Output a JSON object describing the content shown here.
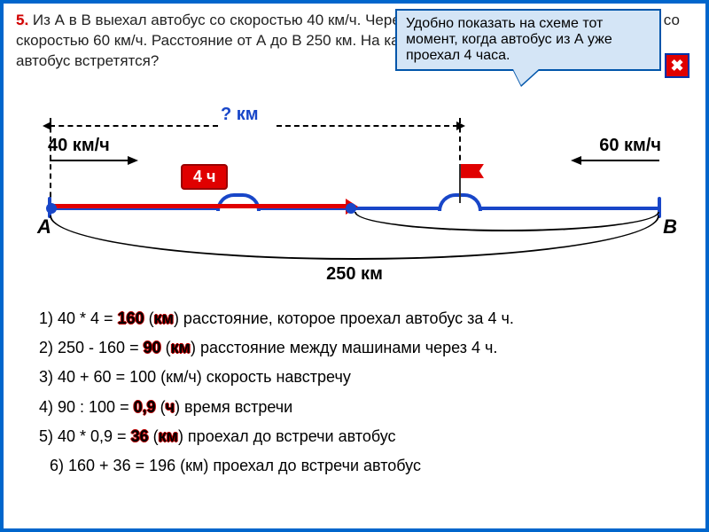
{
  "problem": {
    "number": "5.",
    "text": "Из А в В выехал автобус со скоростью 40 км/ч. Через 4 часа из В в А выехал автомобиль со скоростью 60 км/ч. Расстояние от А до В 250 км. На каком расстоянии от А автомобиль и автобус встретятся?"
  },
  "tooltip": "Удобно показать на схеме тот момент, когда автобус из А уже проехал 4 часа.",
  "close_icon": "✖",
  "diagram": {
    "speed_left": "40 км/ч",
    "speed_right": "60 км/ч",
    "q_km": "? км",
    "badge": "4 ч",
    "pointA": "А",
    "pointB": "В",
    "total": "250 км",
    "colors": {
      "line": "#1846c8",
      "red": "#e00000",
      "tooltip_bg": "#d4e5f6",
      "border": "#0066cc"
    }
  },
  "steps": {
    "s1_pre": "1)  40 * 4 = ",
    "s1_ans": "160",
    "s1_unit_open": " (",
    "s1_unit": "км",
    "s1_post": ") расстояние, которое проехал автобус за 4 ч.",
    "s2_pre": "2) 250 - 160 = ",
    "s2_ans": "90",
    "s2_unit_open": " (",
    "s2_unit": "км",
    "s2_post": ") расстояние между машинами через 4 ч.",
    "s3": "3) 40 + 60 = 100 (км/ч) скорость навстречу",
    "s4_pre": "4) 90 : 100 = ",
    "s4_ans": "0,9",
    "s4_unit_open": " (",
    "s4_unit": "ч",
    "s4_post": ") время встречи",
    "s5_pre": "5) 40 * 0,9 = ",
    "s5_ans": "36",
    "s5_unit_open": " (",
    "s5_unit": "км",
    "s5_post": ") проехал до встречи автобус",
    "s6": "6) 160 + 36 = 196 (км) проехал до встречи автобус"
  }
}
